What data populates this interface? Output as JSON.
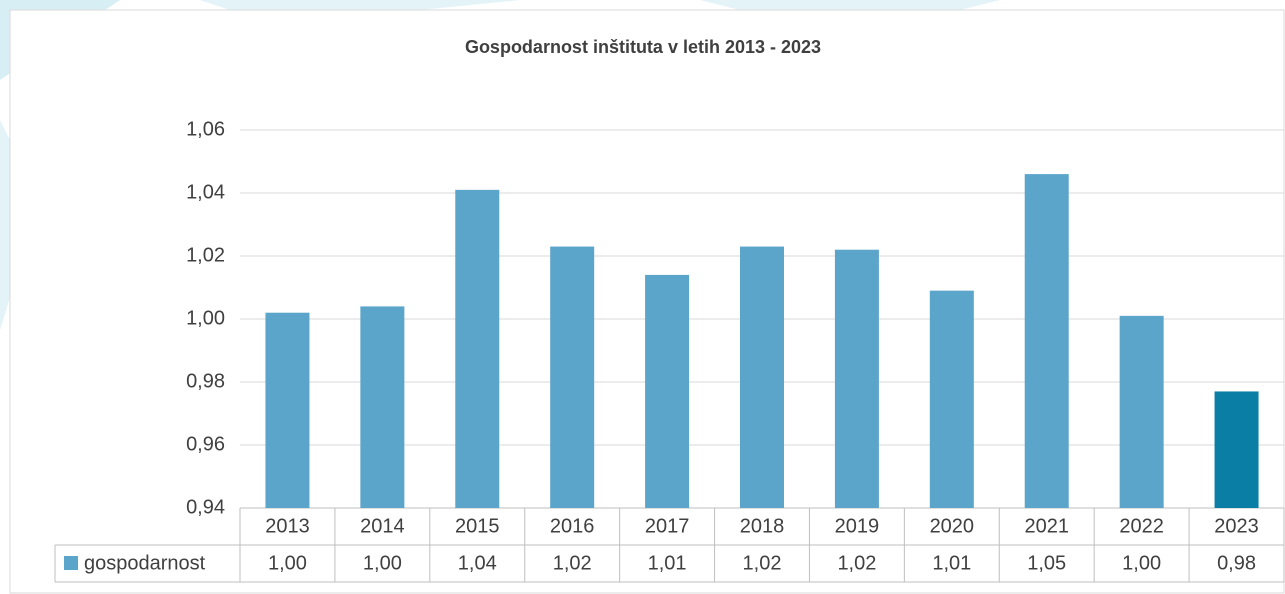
{
  "chart_data": {
    "type": "bar",
    "title": "Gospodarnost inštituta v letih 2013 - 2023",
    "categories": [
      "2013",
      "2014",
      "2015",
      "2016",
      "2017",
      "2018",
      "2019",
      "2020",
      "2021",
      "2022",
      "2023"
    ],
    "series": [
      {
        "name": "gospodarnost",
        "color": "#5ba5cb",
        "colors": [
          "#5ba5cb",
          "#5ba5cb",
          "#5ba5cb",
          "#5ba5cb",
          "#5ba5cb",
          "#5ba5cb",
          "#5ba5cb",
          "#5ba5cb",
          "#5ba5cb",
          "#5ba5cb",
          "#0a7ea5"
        ],
        "values": [
          1.002,
          1.004,
          1.041,
          1.023,
          1.014,
          1.023,
          1.022,
          1.009,
          1.046,
          1.001,
          0.977
        ],
        "value_labels": [
          "1,00",
          "1,00",
          "1,04",
          "1,02",
          "1,01",
          "1,02",
          "1,02",
          "1,01",
          "1,05",
          "1,00",
          "0,98"
        ]
      }
    ],
    "ylim": [
      0.94,
      1.06
    ],
    "yticks": [
      {
        "value": 0.94,
        "label": "0,94"
      },
      {
        "value": 0.96,
        "label": "0,96"
      },
      {
        "value": 0.98,
        "label": "0,98"
      },
      {
        "value": 1.0,
        "label": "1,00"
      },
      {
        "value": 1.02,
        "label": "1,02"
      },
      {
        "value": 1.04,
        "label": "1,04"
      },
      {
        "value": 1.06,
        "label": "1,06"
      }
    ],
    "grid": true
  }
}
